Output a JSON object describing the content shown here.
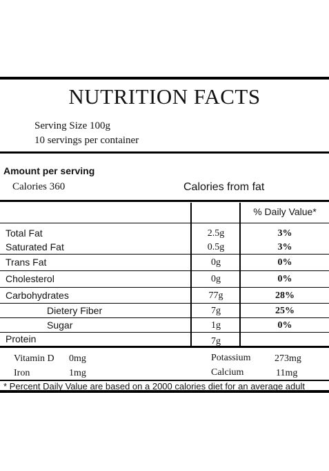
{
  "title": "NUTRITION FACTS",
  "serving": {
    "size": "Serving Size 100g",
    "per_container": "10 servings per container"
  },
  "amount": {
    "heading": "Amount per serving",
    "calories": "Calories  360",
    "calories_from_fat": "Calories from fat"
  },
  "table": {
    "dv_header": "% Daily Value*",
    "rows": [
      {
        "name": "Total Fat",
        "amount": "2.5g",
        "dv": "3%"
      },
      {
        "name": "Saturated Fat",
        "amount": "0.5g",
        "dv": "3%"
      },
      {
        "name": "Trans Fat",
        "amount": "0g",
        "dv": "0%"
      },
      {
        "name": "Cholesterol",
        "amount": "0g",
        "dv": "0%"
      },
      {
        "name": "Carbohydrates",
        "amount": "77g",
        "dv": "28%"
      },
      {
        "name": "Dietery Fiber",
        "amount": "7g",
        "dv": "25%"
      },
      {
        "name": "Sugar",
        "amount": "1g",
        "dv": "0%"
      },
      {
        "name": "Protein",
        "amount": "7g",
        "dv": ""
      }
    ]
  },
  "vitamins": {
    "vitamin_d_label": "Vitamin D",
    "vitamin_d_value": "0mg",
    "iron_label": "Iron",
    "iron_value": "1mg",
    "potassium_label": "Potassium",
    "potassium_value": "273mg",
    "calcium_label": "Calcium",
    "calcium_value": "11mg"
  },
  "footnote": "* Percent Daily Value are based on a 2000 calories diet for an average adult"
}
